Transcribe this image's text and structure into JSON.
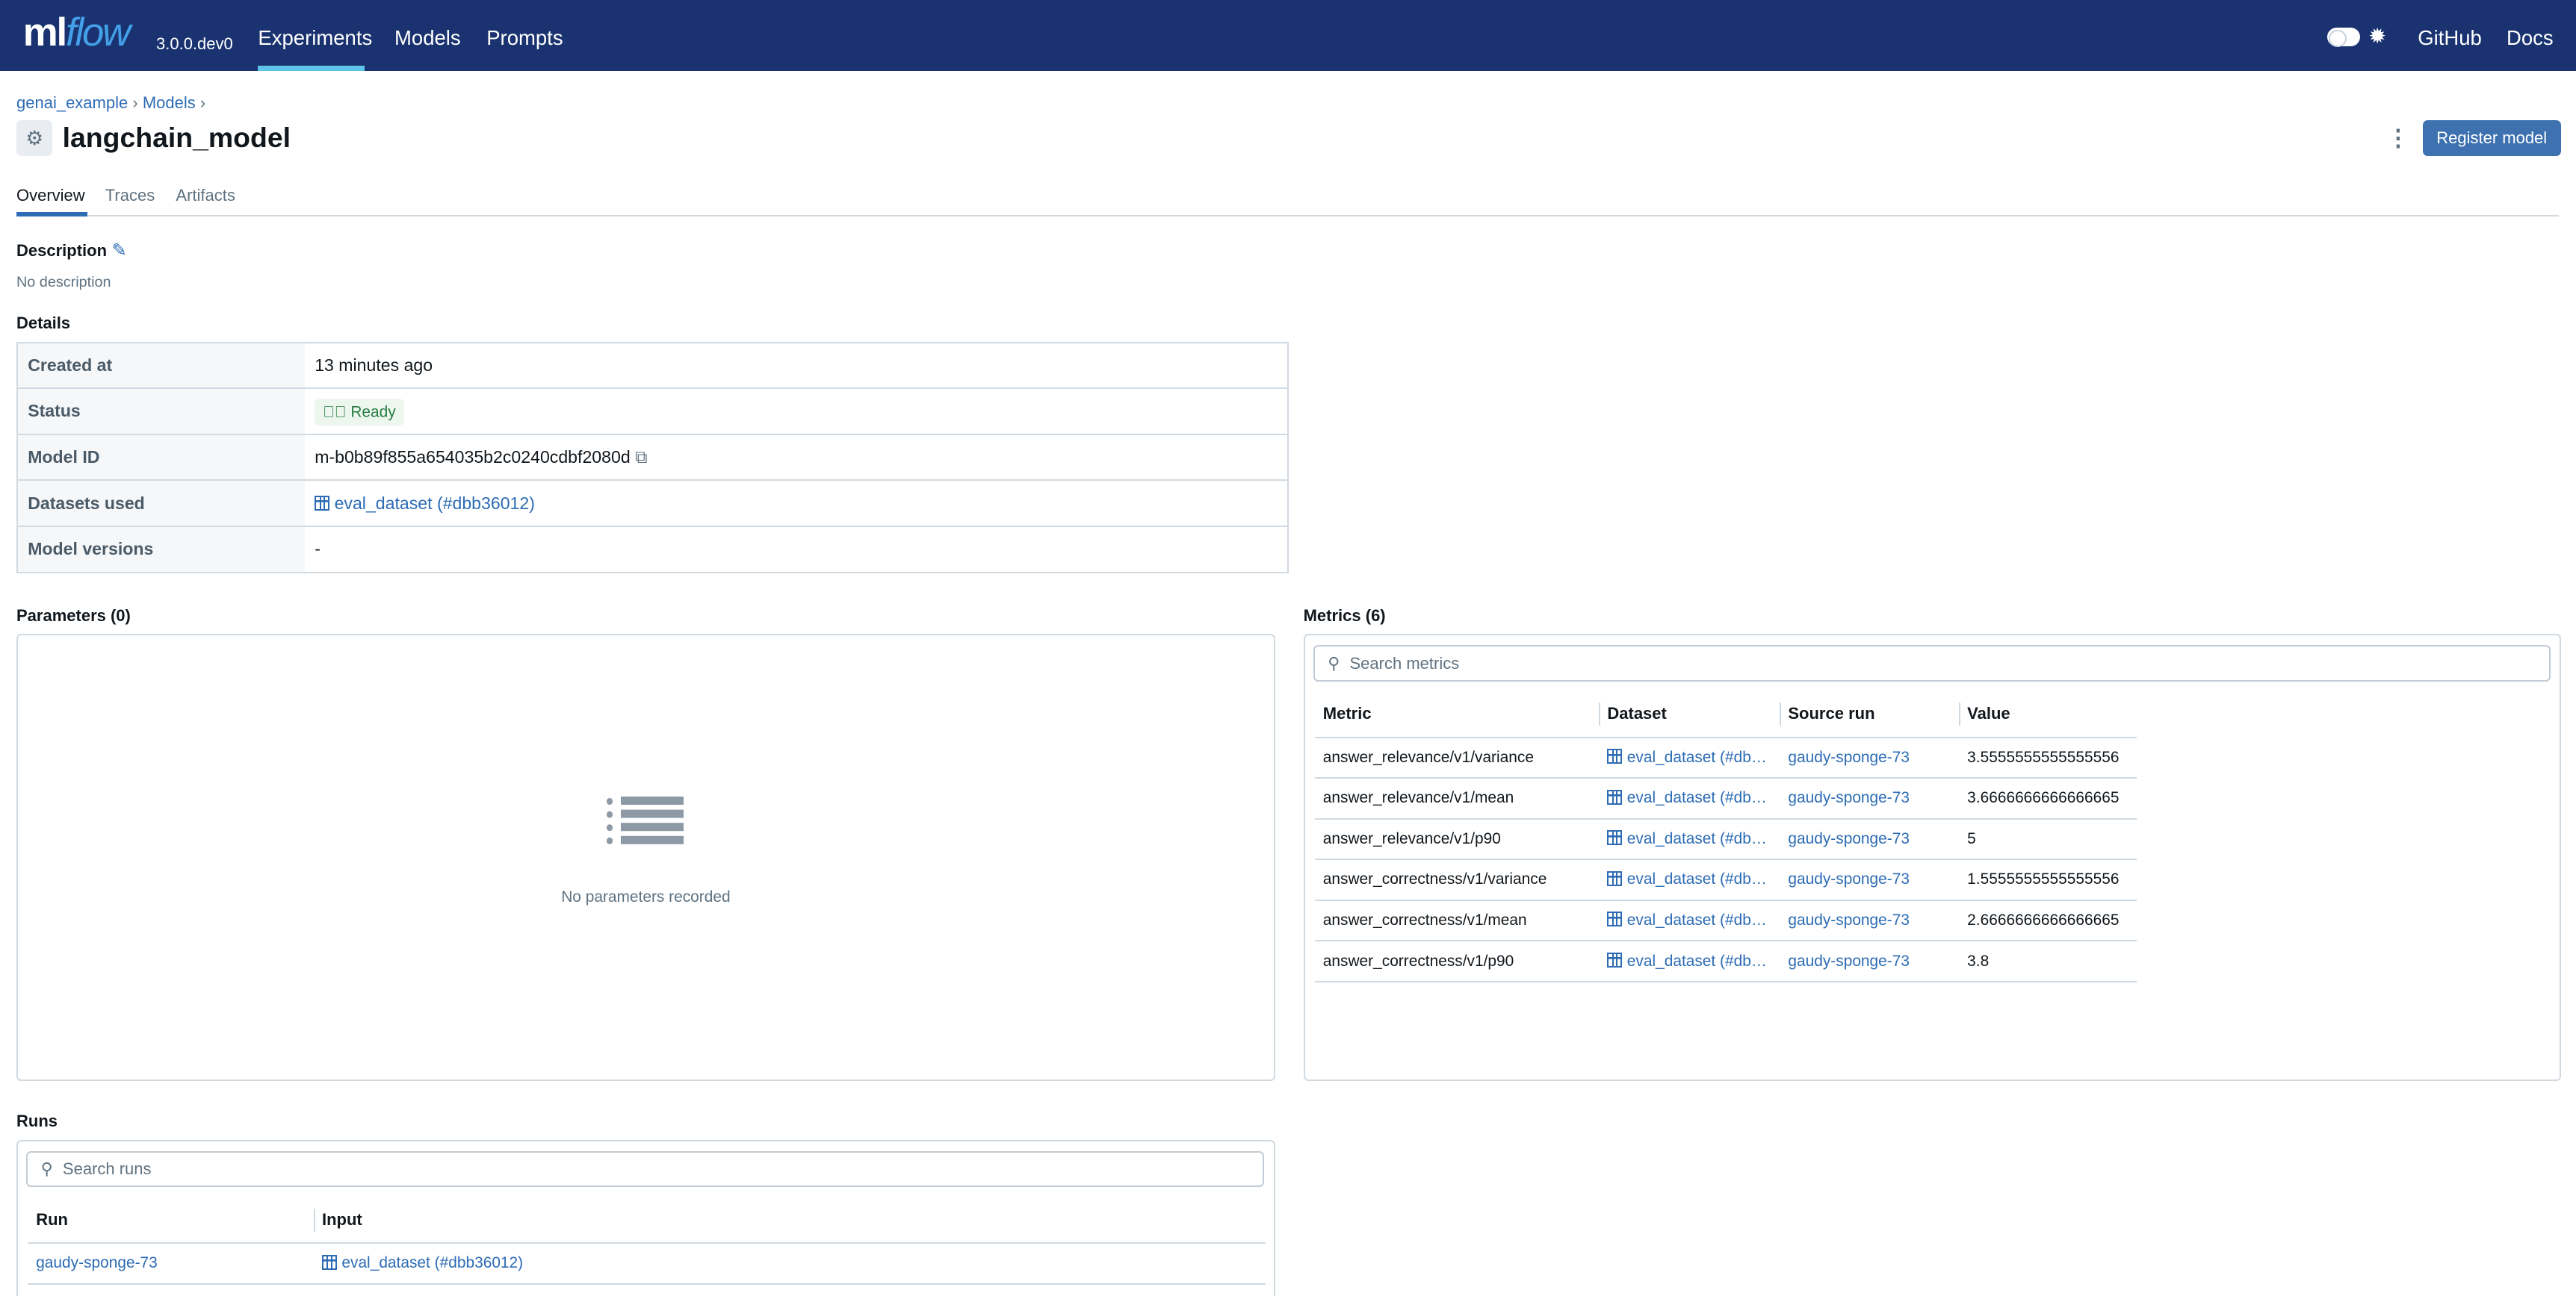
{
  "header": {
    "logo": "mlflow",
    "version": "3.0.0.dev0",
    "nav": [
      "Experiments",
      "Models",
      "Prompts"
    ],
    "active_nav": "Experiments",
    "right_links": [
      "GitHub",
      "Docs"
    ],
    "bg_color": "#1a3370"
  },
  "breadcrumb": [
    "genai_example",
    "Models"
  ],
  "title": "langchain_model",
  "register_button": "Register model",
  "tabs": [
    "Overview",
    "Traces",
    "Artifacts"
  ],
  "active_tab": "Overview",
  "description": {
    "heading": "Description",
    "text": "No description"
  },
  "details": {
    "heading": "Details",
    "rows": [
      {
        "label": "Created at",
        "value": "13 minutes ago"
      },
      {
        "label": "Status",
        "value": "Ready"
      },
      {
        "label": "Model ID",
        "value": "m-b0b89f855a654035b2c0240cdbf2080d"
      },
      {
        "label": "Datasets used",
        "value": "eval_dataset (#dbb36012)"
      },
      {
        "label": "Model versions",
        "value": "-"
      }
    ]
  },
  "parameters": {
    "heading": "Parameters (0)",
    "empty_text": "No parameters recorded"
  },
  "metrics": {
    "heading": "Metrics (6)",
    "search_placeholder": "Search metrics",
    "columns": [
      "Metric",
      "Dataset",
      "Source run",
      "Value"
    ],
    "rows": [
      [
        "answer_relevance/v1/variance",
        "eval_dataset (#dbb36012)",
        "gaudy-sponge-73",
        "3.5555555555555556"
      ],
      [
        "answer_relevance/v1/mean",
        "eval_dataset (#dbb36012)",
        "gaudy-sponge-73",
        "3.6666666666666665"
      ],
      [
        "answer_relevance/v1/p90",
        "eval_dataset (#dbb36012)",
        "gaudy-sponge-73",
        "5"
      ],
      [
        "answer_correctness/v1/variance",
        "eval_dataset (#dbb36012)",
        "gaudy-sponge-73",
        "1.5555555555555556"
      ],
      [
        "answer_correctness/v1/mean",
        "eval_dataset (#dbb36012)",
        "gaudy-sponge-73",
        "2.6666666666666665"
      ],
      [
        "answer_correctness/v1/p90",
        "eval_dataset (#dbb36012)",
        "gaudy-sponge-73",
        "3.8"
      ]
    ]
  },
  "runs": {
    "heading": "Runs",
    "search_placeholder": "Search runs",
    "columns": [
      "Run",
      "Input"
    ],
    "rows": [
      [
        "gaudy-sponge-73",
        "eval_dataset (#dbb36012)"
      ]
    ]
  }
}
